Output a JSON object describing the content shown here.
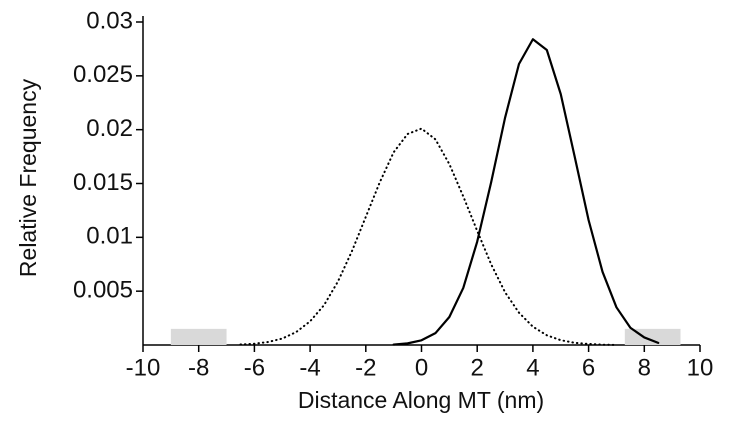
{
  "chart_data": {
    "type": "line",
    "x_label": "Distance Along MT (nm)",
    "y_label": "Relative Frequency",
    "x": [
      -6.5,
      -6,
      -5.5,
      -5,
      -4.5,
      -4,
      -3.5,
      -3,
      -2.5,
      -2,
      -1.5,
      -1,
      -0.5,
      0,
      0.5,
      1,
      1.5,
      2,
      2.5,
      3,
      3.5,
      4,
      4.5,
      5,
      5.5,
      6,
      6.5,
      7,
      7.5,
      8,
      8.5
    ],
    "series": [
      {
        "color": "#000000",
        "style": "dotted",
        "values": [
          5e-05,
          0.00012,
          0.00028,
          0.0006,
          0.0012,
          0.0022,
          0.0037,
          0.0059,
          0.0087,
          0.0119,
          0.0151,
          0.0179,
          0.0196,
          0.0201,
          0.0191,
          0.0168,
          0.0138,
          0.0106,
          0.0075,
          0.0049,
          0.003,
          0.0017,
          0.0009,
          0.00045,
          0.0002,
          0.0001,
          3e-05,
          1e-05,
          null,
          null,
          null
        ]
      },
      {
        "color": "#000000",
        "style": "solid",
        "values": [
          null,
          null,
          null,
          null,
          null,
          null,
          null,
          null,
          null,
          null,
          null,
          4e-05,
          0.00015,
          0.00044,
          0.0011,
          0.0026,
          0.0053,
          0.0096,
          0.0151,
          0.0211,
          0.0261,
          0.0284,
          0.0274,
          0.0233,
          0.0175,
          0.0116,
          0.0068,
          0.0035,
          0.0016,
          0.0007,
          0.0002
        ]
      }
    ],
    "shaded_regions": [
      {
        "x": [
          -9,
          -7
        ],
        "y": [
          0,
          0.0015
        ],
        "color": "#d9d9d9"
      },
      {
        "x": [
          7.3,
          9.3
        ],
        "y": [
          0,
          0.0015
        ],
        "color": "#d9d9d9"
      }
    ],
    "xlim": [
      -10,
      10
    ],
    "xticks": [
      -10,
      -8,
      -6,
      -4,
      -2,
      0,
      2,
      4,
      6,
      8,
      10
    ],
    "ylim": [
      0,
      0.03
    ],
    "yticks": [
      0.005,
      0.01,
      0.015,
      0.02,
      0.025,
      0.03
    ]
  }
}
